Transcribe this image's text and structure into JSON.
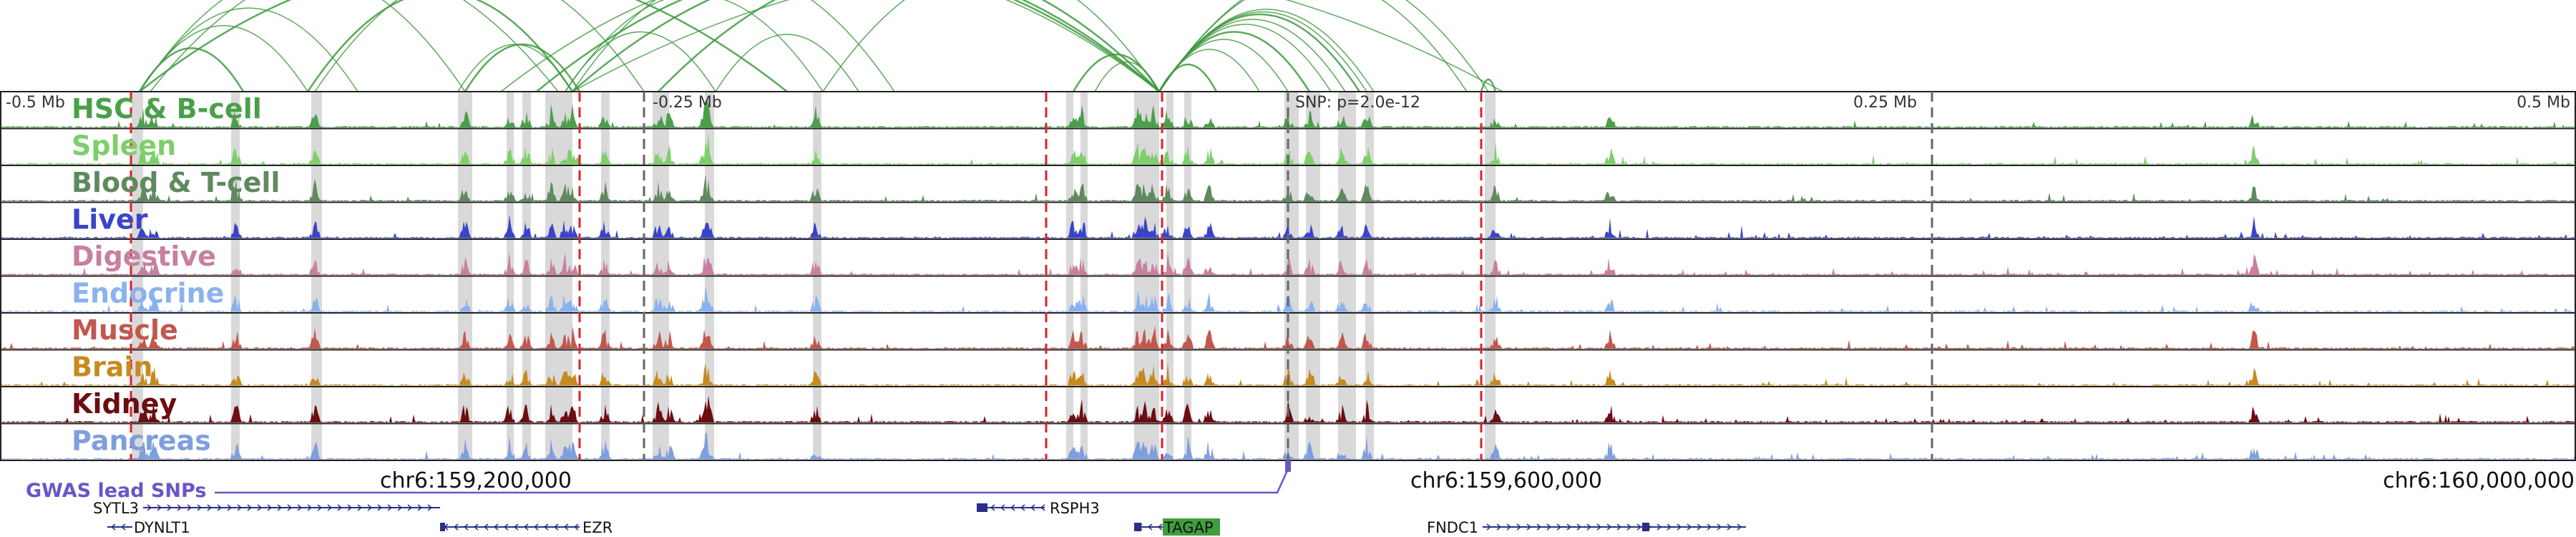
{
  "axis": {
    "offset_labels": [
      {
        "label": "-0.5 Mb",
        "pos": -0.5
      },
      {
        "label": "-0.25 Mb",
        "pos": -0.25
      },
      {
        "label": "0.25 Mb",
        "pos": 0.25
      },
      {
        "label": "0.5 Mb",
        "pos": 0.5
      }
    ],
    "view_range_mb": [
      -0.5,
      0.5
    ],
    "snp_label": "SNP: p=2.0e-12"
  },
  "coordinates": {
    "chrom": "chr6",
    "ticks": [
      {
        "label": "chr6:159,200,000",
        "value": 159200000
      },
      {
        "label": "chr6:159,600,000",
        "value": 159600000
      },
      {
        "label": "chr6:160,000,000",
        "value": 160000000
      }
    ]
  },
  "tracks": [
    {
      "name": "HSC & B-cell",
      "color": "#4aa04a"
    },
    {
      "name": "Spleen",
      "color": "#7dcf6a"
    },
    {
      "name": "Blood & T-cell",
      "color": "#5e8a5e"
    },
    {
      "name": "Liver",
      "color": "#3a44c8"
    },
    {
      "name": "Digestive",
      "color": "#c87fa0"
    },
    {
      "name": "Endocrine",
      "color": "#8ab2ee"
    },
    {
      "name": "Muscle",
      "color": "#c2574e"
    },
    {
      "name": "Brain",
      "color": "#c78a1e"
    },
    {
      "name": "Kidney",
      "color": "#6b0d12"
    },
    {
      "name": "Pancreas",
      "color": "#7f9ede"
    }
  ],
  "gwas": {
    "label": "GWAS lead SNPs",
    "color": "#6a55c9"
  },
  "genes": [
    {
      "name": "SYTL3",
      "strand": "+"
    },
    {
      "name": "DYNLT1",
      "strand": "-"
    },
    {
      "name": "EZR",
      "strand": "-"
    },
    {
      "name": "RSPH3",
      "strand": "-"
    },
    {
      "name": "TAGAP",
      "strand": "-",
      "highlight": true,
      "highlight_color": "#3f9e3f"
    },
    {
      "name": "FNDC1",
      "strand": "+"
    }
  ],
  "colors": {
    "arc": "#3f9a3f",
    "dashed_red": "#e0202a",
    "dashed_gray": "#666666",
    "highlight_band": "#d9d9d9",
    "gene": "#2a2f8a"
  }
}
